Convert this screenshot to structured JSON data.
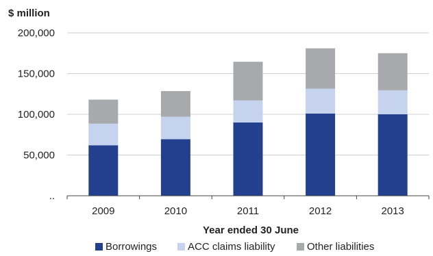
{
  "chart_data": {
    "type": "bar",
    "stacked": true,
    "y_unit_label": "$ million",
    "xlabel": "Year ended 30 June",
    "ylabel": "",
    "categories": [
      "2009",
      "2010",
      "2011",
      "2012",
      "2013"
    ],
    "series": [
      {
        "name": "Borrowings",
        "values": [
          62000,
          69500,
          90000,
          101000,
          100000
        ],
        "color": "#23408e"
      },
      {
        "name": "ACC claims liability",
        "values": [
          26500,
          27500,
          27000,
          30500,
          29500
        ],
        "color": "#c5d3ef"
      },
      {
        "name": "Other liabilities",
        "values": [
          29500,
          31500,
          47500,
          49500,
          45500
        ],
        "color": "#a7a9ac"
      }
    ],
    "ylim": [
      0,
      200000
    ],
    "yticks": [
      0,
      50000,
      100000,
      150000,
      200000
    ],
    "ytick_labels": [
      "..",
      "50,000",
      "100,000",
      "150,000",
      "200,000"
    ],
    "grid": true,
    "legend_position": "bottom"
  }
}
